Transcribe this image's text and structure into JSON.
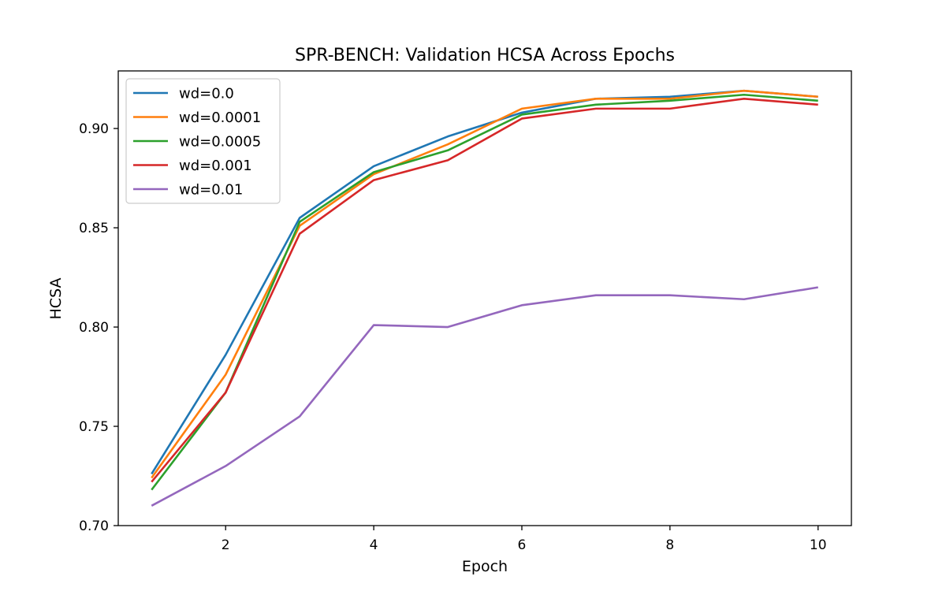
{
  "chart_data": {
    "type": "line",
    "title": "SPR-BENCH: Validation HCSA Across Epochs",
    "xlabel": "Epoch",
    "ylabel": "HCSA",
    "xlim": [
      0.55,
      10.45
    ],
    "ylim": [
      0.7,
      0.929
    ],
    "xticks": [
      2,
      4,
      6,
      8,
      10
    ],
    "yticks": [
      0.7,
      0.75,
      0.8,
      0.85,
      0.9
    ],
    "ytick_labels": [
      "0.70",
      "0.75",
      "0.80",
      "0.85",
      "0.90"
    ],
    "grid": false,
    "legend_position": "top-left",
    "x": [
      1,
      2,
      3,
      4,
      5,
      6,
      7,
      8,
      9,
      10
    ],
    "series": [
      {
        "name": "wd=0.0",
        "color": "#1f77b4",
        "values": [
          0.726,
          0.786,
          0.855,
          0.881,
          0.896,
          0.908,
          0.915,
          0.916,
          0.919,
          0.916
        ]
      },
      {
        "name": "wd=0.0001",
        "color": "#ff7f0e",
        "values": [
          0.724,
          0.776,
          0.851,
          0.877,
          0.892,
          0.91,
          0.915,
          0.915,
          0.919,
          0.916
        ]
      },
      {
        "name": "wd=0.0005",
        "color": "#2ca02c",
        "values": [
          0.718,
          0.767,
          0.853,
          0.878,
          0.889,
          0.907,
          0.912,
          0.914,
          0.917,
          0.914
        ]
      },
      {
        "name": "wd=0.001",
        "color": "#d62728",
        "values": [
          0.722,
          0.767,
          0.847,
          0.874,
          0.884,
          0.905,
          0.91,
          0.91,
          0.915,
          0.912
        ]
      },
      {
        "name": "wd=0.01",
        "color": "#9467bd",
        "values": [
          0.71,
          0.73,
          0.755,
          0.801,
          0.8,
          0.811,
          0.816,
          0.816,
          0.814,
          0.82
        ]
      }
    ]
  }
}
